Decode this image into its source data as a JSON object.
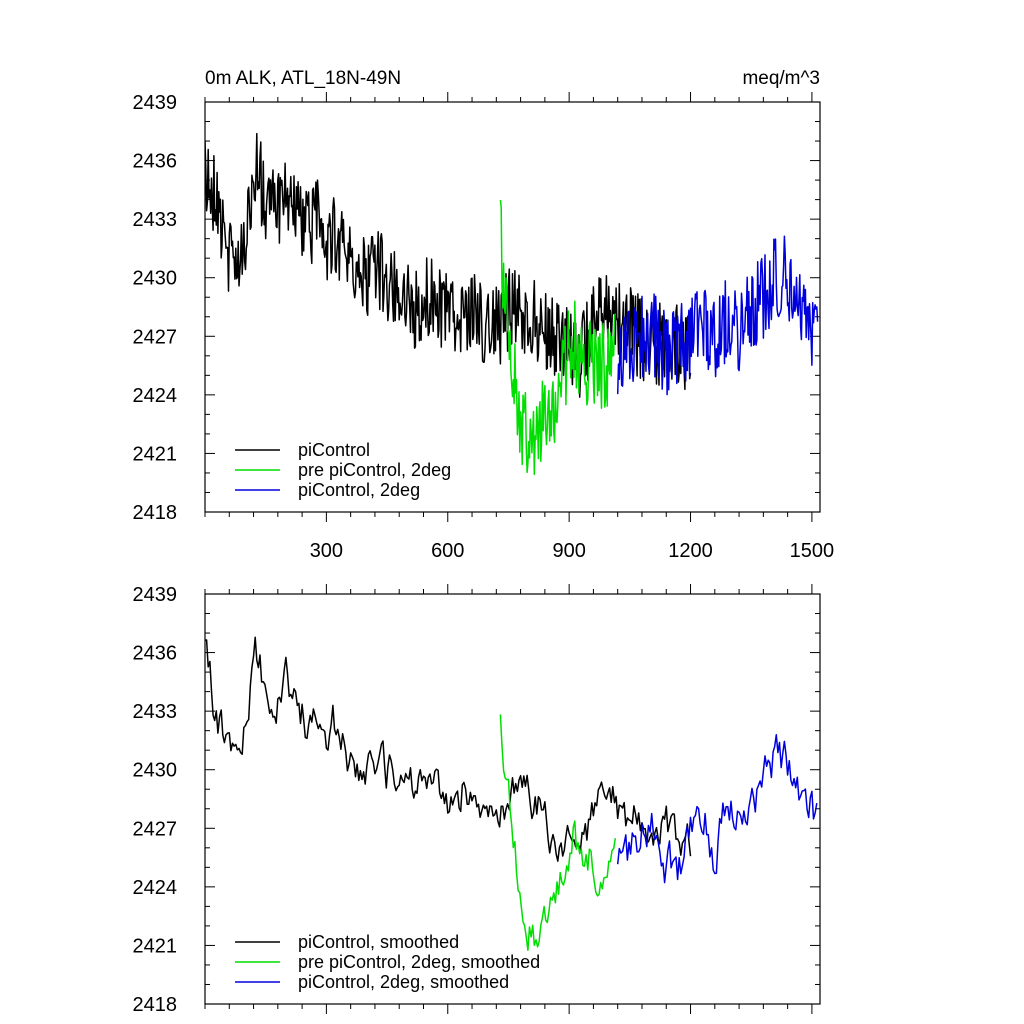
{
  "chart_data": [
    {
      "type": "line",
      "title": "0m ALK, ATL_18N-49N",
      "units": "meq/m^3",
      "xlabel": "",
      "ylabel": "",
      "xlim": [
        0,
        1520
      ],
      "ylim": [
        2418,
        2439
      ],
      "x_ticks": [
        300,
        600,
        900,
        1200,
        1500
      ],
      "y_ticks": [
        2418,
        2421,
        2424,
        2427,
        2430,
        2433,
        2436,
        2439
      ],
      "x_tick_labels_shown": true,
      "legend_position": "bottom-left",
      "series": [
        {
          "name": "piControl",
          "color": "#000000",
          "x": [
            0,
            25,
            50,
            75,
            100,
            125,
            150,
            175,
            200,
            225,
            250,
            275,
            300,
            325,
            350,
            375,
            400,
            425,
            450,
            475,
            500,
            525,
            550,
            575,
            600,
            625,
            650,
            675,
            700,
            725,
            750,
            775,
            800,
            825,
            850,
            875,
            900,
            925,
            950,
            975,
            1000,
            1025,
            1050,
            1075,
            1100,
            1125,
            1150,
            1175,
            1200
          ],
          "y": [
            2435.5,
            2434,
            2431.5,
            2430.5,
            2431.5,
            2436,
            2434,
            2433.5,
            2434.5,
            2434,
            2432.5,
            2433,
            2432,
            2432,
            2431,
            2430,
            2430,
            2430.5,
            2429.5,
            2429.5,
            2428.5,
            2428.5,
            2429,
            2428.5,
            2428,
            2428,
            2428.5,
            2428,
            2427,
            2427.5,
            2428.5,
            2428.5,
            2428,
            2427.5,
            2427,
            2426.5,
            2426.5,
            2426,
            2427,
            2428,
            2428,
            2427.5,
            2427.5,
            2427,
            2426.5,
            2426.5,
            2427,
            2426.5,
            2426
          ]
        },
        {
          "name": "pre piControl, 2deg",
          "color": "#00dd00",
          "x": [
            730,
            745,
            760,
            775,
            790,
            805,
            820,
            835,
            850,
            865,
            880,
            895,
            910,
            925,
            940,
            955,
            970,
            985,
            1000,
            1015
          ],
          "y": [
            2432,
            2428.5,
            2426,
            2423,
            2422,
            2422.5,
            2421.5,
            2423,
            2423.5,
            2422.5,
            2424.5,
            2426,
            2427,
            2426,
            2425,
            2426,
            2425,
            2425.5,
            2425.5,
            2426
          ]
        },
        {
          "name": "piControl, 2deg",
          "color": "#0000dd",
          "x": [
            1020,
            1050,
            1080,
            1110,
            1140,
            1170,
            1200,
            1230,
            1260,
            1290,
            1320,
            1350,
            1380,
            1410,
            1440,
            1470,
            1500,
            1515
          ],
          "y": [
            2426,
            2426.5,
            2427,
            2427,
            2426,
            2426.5,
            2427,
            2428,
            2426.5,
            2428,
            2427,
            2428.5,
            2429,
            2430,
            2430,
            2429,
            2427.5,
            2427
          ]
        }
      ]
    },
    {
      "type": "line",
      "title": "",
      "xlabel": "",
      "ylabel": "",
      "xlim": [
        0,
        1520
      ],
      "ylim": [
        2418,
        2439
      ],
      "x_ticks": [
        300,
        600,
        900,
        1200,
        1500
      ],
      "y_ticks": [
        2418,
        2421,
        2424,
        2427,
        2430,
        2433,
        2436,
        2439
      ],
      "x_tick_labels_shown": false,
      "legend_position": "bottom-left",
      "series": [
        {
          "name": "piControl, smoothed",
          "color": "#000000",
          "x": [
            0,
            25,
            50,
            75,
            100,
            125,
            150,
            175,
            200,
            225,
            250,
            275,
            300,
            325,
            350,
            375,
            400,
            425,
            450,
            475,
            500,
            525,
            550,
            575,
            600,
            625,
            650,
            675,
            700,
            725,
            750,
            775,
            800,
            825,
            850,
            875,
            900,
            925,
            950,
            975,
            1000,
            1025,
            1050,
            1075,
            1100,
            1125,
            1150,
            1175,
            1200
          ],
          "y": [
            2436,
            2433,
            2431.5,
            2431,
            2432,
            2436,
            2434,
            2433,
            2434.5,
            2434,
            2432.5,
            2433,
            2432,
            2432.5,
            2431,
            2430,
            2430.5,
            2430.5,
            2429.5,
            2430,
            2429,
            2428.5,
            2429.5,
            2429,
            2428.5,
            2428.5,
            2429,
            2428.5,
            2428,
            2428,
            2428.5,
            2429.5,
            2428.5,
            2428,
            2427,
            2426.5,
            2426.5,
            2426,
            2427,
            2428,
            2428.5,
            2428,
            2427.5,
            2427,
            2427,
            2426.5,
            2427,
            2426.5,
            2426
          ]
        },
        {
          "name": "pre piControl, 2deg, smoothed",
          "color": "#00dd00",
          "x": [
            730,
            745,
            760,
            775,
            790,
            805,
            820,
            835,
            850,
            865,
            880,
            895,
            910,
            925,
            940,
            955,
            970,
            985,
            1000,
            1015
          ],
          "y": [
            2432,
            2428.5,
            2427,
            2424,
            2421.5,
            2422,
            2421,
            2423,
            2422.5,
            2423,
            2424.5,
            2425.5,
            2426.5,
            2426,
            2425,
            2425.5,
            2425,
            2425,
            2425.5,
            2425.5
          ]
        },
        {
          "name": "piControl, 2deg, smoothed",
          "color": "#0000dd",
          "x": [
            1020,
            1050,
            1080,
            1110,
            1140,
            1170,
            1200,
            1230,
            1260,
            1290,
            1320,
            1350,
            1380,
            1410,
            1440,
            1470,
            1500,
            1515
          ],
          "y": [
            2426,
            2425.5,
            2427,
            2427,
            2425,
            2425,
            2426.5,
            2428,
            2425.5,
            2428,
            2427,
            2428.5,
            2429.5,
            2430.5,
            2430.5,
            2429,
            2428,
            2427
          ]
        }
      ]
    }
  ]
}
